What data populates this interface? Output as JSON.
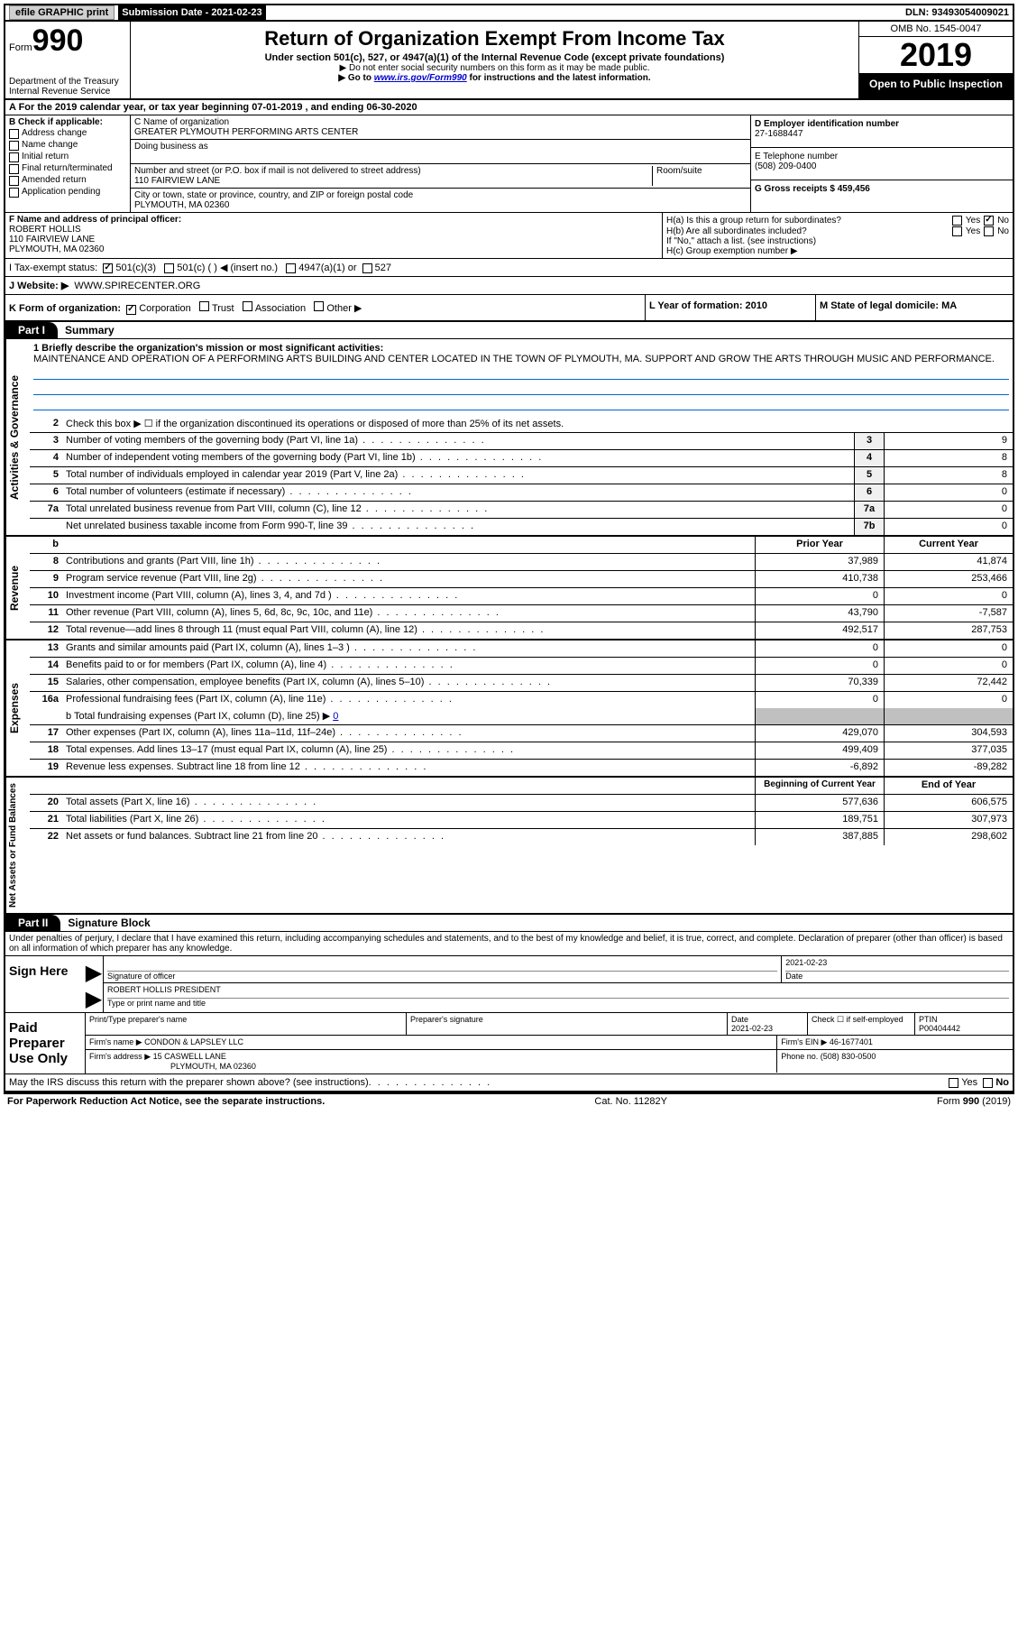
{
  "top": {
    "efile": "efile GRAPHIC print",
    "sub_label": "Submission Date - 2021-02-23",
    "dln": "DLN: 93493054009021"
  },
  "header": {
    "form_prefix": "Form",
    "form_num": "990",
    "dept": "Department of the Treasury",
    "irs": "Internal Revenue Service",
    "title": "Return of Organization Exempt From Income Tax",
    "subtitle": "Under section 501(c), 527, or 4947(a)(1) of the Internal Revenue Code (except private foundations)",
    "instr1": "▶ Do not enter social security numbers on this form as it may be made public.",
    "instr2_pre": "▶ Go to ",
    "instr2_link": "www.irs.gov/Form990",
    "instr2_post": " for instructions and the latest information.",
    "omb": "OMB No. 1545-0047",
    "year": "2019",
    "open": "Open to Public Inspection"
  },
  "period": "A For the 2019 calendar year, or tax year beginning 07-01-2019    , and ending 06-30-2020",
  "b": {
    "label": "B Check if applicable:",
    "addr": "Address change",
    "name": "Name change",
    "init": "Initial return",
    "final": "Final return/terminated",
    "amend": "Amended return",
    "app": "Application pending"
  },
  "c": {
    "name_label": "C Name of organization",
    "name": "GREATER PLYMOUTH PERFORMING ARTS CENTER",
    "dba": "Doing business as",
    "addr_label": "Number and street (or P.O. box if mail is not delivered to street address)",
    "addr": "110 FAIRVIEW LANE",
    "room": "Room/suite",
    "city_label": "City or town, state or province, country, and ZIP or foreign postal code",
    "city": "PLYMOUTH, MA  02360"
  },
  "d": {
    "label": "D Employer identification number",
    "val": "27-1688447"
  },
  "e": {
    "label": "E Telephone number",
    "val": "(508) 209-0400"
  },
  "g": {
    "label": "G Gross receipts $ 459,456"
  },
  "f": {
    "label": "F  Name and address of principal officer:",
    "name": "ROBERT HOLLIS",
    "addr1": "110 FAIRVIEW LANE",
    "addr2": "PLYMOUTH, MA  02360"
  },
  "h": {
    "a": "H(a)  Is this a group return for subordinates?",
    "b": "H(b)  Are all subordinates included?",
    "note": "If \"No,\" attach a list. (see instructions)",
    "c": "H(c)  Group exemption number ▶",
    "yes": "Yes",
    "no": "No"
  },
  "i": {
    "label": "I  Tax-exempt status:",
    "c3": "501(c)(3)",
    "c": "501(c) (  ) ◀ (insert no.)",
    "a1": "4947(a)(1) or",
    "s527": "527"
  },
  "j": {
    "label": "J   Website: ▶",
    "val": "WWW.SPIRECENTER.ORG"
  },
  "k": {
    "label": "K Form of organization:",
    "corp": "Corporation",
    "trust": "Trust",
    "assoc": "Association",
    "other": "Other ▶"
  },
  "l": {
    "label": "L Year of formation: 2010"
  },
  "m": {
    "label": "M State of legal domicile: MA"
  },
  "part1": {
    "tab": "Part I",
    "title": "Summary",
    "q1": "1  Briefly describe the organization's mission or most significant activities:",
    "mission": "MAINTENANCE AND OPERATION OF A PERFORMING ARTS BUILDING AND CENTER LOCATED IN THE TOWN OF PLYMOUTH, MA. SUPPORT AND GROW THE ARTS THROUGH MUSIC AND PERFORMANCE.",
    "q2": "Check this box ▶ ☐  if the organization discontinued its operations or disposed of more than 25% of its net assets.",
    "rows_a": [
      {
        "n": "3",
        "d": "Number of voting members of the governing body (Part VI, line 1a)",
        "b": "3",
        "v": "9"
      },
      {
        "n": "4",
        "d": "Number of independent voting members of the governing body (Part VI, line 1b)",
        "b": "4",
        "v": "8"
      },
      {
        "n": "5",
        "d": "Total number of individuals employed in calendar year 2019 (Part V, line 2a)",
        "b": "5",
        "v": "8"
      },
      {
        "n": "6",
        "d": "Total number of volunteers (estimate if necessary)",
        "b": "6",
        "v": "0"
      },
      {
        "n": "7a",
        "d": "Total unrelated business revenue from Part VIII, column (C), line 12",
        "b": "7a",
        "v": "0"
      },
      {
        "n": " ",
        "d": "Net unrelated business taxable income from Form 990-T, line 39",
        "b": "7b",
        "v": "0"
      }
    ],
    "prior": "Prior Year",
    "current": "Current Year",
    "rows_rev": [
      {
        "n": "8",
        "d": "Contributions and grants (Part VIII, line 1h)",
        "p": "37,989",
        "c": "41,874"
      },
      {
        "n": "9",
        "d": "Program service revenue (Part VIII, line 2g)",
        "p": "410,738",
        "c": "253,466"
      },
      {
        "n": "10",
        "d": "Investment income (Part VIII, column (A), lines 3, 4, and 7d )",
        "p": "0",
        "c": "0"
      },
      {
        "n": "11",
        "d": "Other revenue (Part VIII, column (A), lines 5, 6d, 8c, 9c, 10c, and 11e)",
        "p": "43,790",
        "c": "-7,587"
      },
      {
        "n": "12",
        "d": "Total revenue—add lines 8 through 11 (must equal Part VIII, column (A), line 12)",
        "p": "492,517",
        "c": "287,753"
      }
    ],
    "rows_exp": [
      {
        "n": "13",
        "d": "Grants and similar amounts paid (Part IX, column (A), lines 1–3 )",
        "p": "0",
        "c": "0"
      },
      {
        "n": "14",
        "d": "Benefits paid to or for members (Part IX, column (A), line 4)",
        "p": "0",
        "c": "0"
      },
      {
        "n": "15",
        "d": "Salaries, other compensation, employee benefits (Part IX, column (A), lines 5–10)",
        "p": "70,339",
        "c": "72,442"
      },
      {
        "n": "16a",
        "d": "Professional fundraising fees (Part IX, column (A), line 11e)",
        "p": "0",
        "c": "0"
      }
    ],
    "fund_b": "b  Total fundraising expenses (Part IX, column (D), line 25) ▶",
    "fund_b_val": "0",
    "rows_exp2": [
      {
        "n": "17",
        "d": "Other expenses (Part IX, column (A), lines 11a–11d, 11f–24e)",
        "p": "429,070",
        "c": "304,593"
      },
      {
        "n": "18",
        "d": "Total expenses. Add lines 13–17 (must equal Part IX, column (A), line 25)",
        "p": "499,409",
        "c": "377,035"
      },
      {
        "n": "19",
        "d": "Revenue less expenses. Subtract line 18 from line 12",
        "p": "-6,892",
        "c": "-89,282"
      }
    ],
    "beg": "Beginning of Current Year",
    "end": "End of Year",
    "rows_net": [
      {
        "n": "20",
        "d": "Total assets (Part X, line 16)",
        "p": "577,636",
        "c": "606,575"
      },
      {
        "n": "21",
        "d": "Total liabilities (Part X, line 26)",
        "p": "189,751",
        "c": "307,973"
      },
      {
        "n": "22",
        "d": "Net assets or fund balances. Subtract line 21 from line 20",
        "p": "387,885",
        "c": "298,602"
      }
    ],
    "side_a": "Activities & Governance",
    "side_r": "Revenue",
    "side_e": "Expenses",
    "side_n": "Net Assets or Fund Balances"
  },
  "part2": {
    "tab": "Part II",
    "title": "Signature Block",
    "decl": "Under penalties of perjury, I declare that I have examined this return, including accompanying schedules and statements, and to the best of my knowledge and belief, it is true, correct, and complete. Declaration of preparer (other than officer) is based on all information of which preparer has any knowledge.",
    "sign_here": "Sign Here",
    "sig_officer": "Signature of officer",
    "date": "Date",
    "date_val": "2021-02-23",
    "officer": "ROBERT HOLLIS  PRESIDENT",
    "type_name": "Type or print name and title",
    "paid": "Paid Preparer Use Only",
    "prep_name": "Print/Type preparer's name",
    "prep_sig": "Preparer's signature",
    "prep_date": "Date",
    "prep_date_val": "2021-02-23",
    "check_self": "Check ☐ if self-employed",
    "ptin": "PTIN",
    "ptin_val": "P00404442",
    "firm_name": "Firm's name    ▶",
    "firm_name_val": "CONDON & LAPSLEY LLC",
    "firm_ein": "Firm's EIN ▶ 46-1677401",
    "firm_addr": "Firm's address ▶",
    "firm_addr_val": "15 CASWELL LANE",
    "firm_addr_val2": "PLYMOUTH, MA  02360",
    "phone": "Phone no. (508) 830-0500",
    "discuss": "May the IRS discuss this return with the preparer shown above? (see instructions)"
  },
  "footer": {
    "left": "For Paperwork Reduction Act Notice, see the separate instructions.",
    "mid": "Cat. No. 11282Y",
    "right": "Form 990 (2019)"
  }
}
